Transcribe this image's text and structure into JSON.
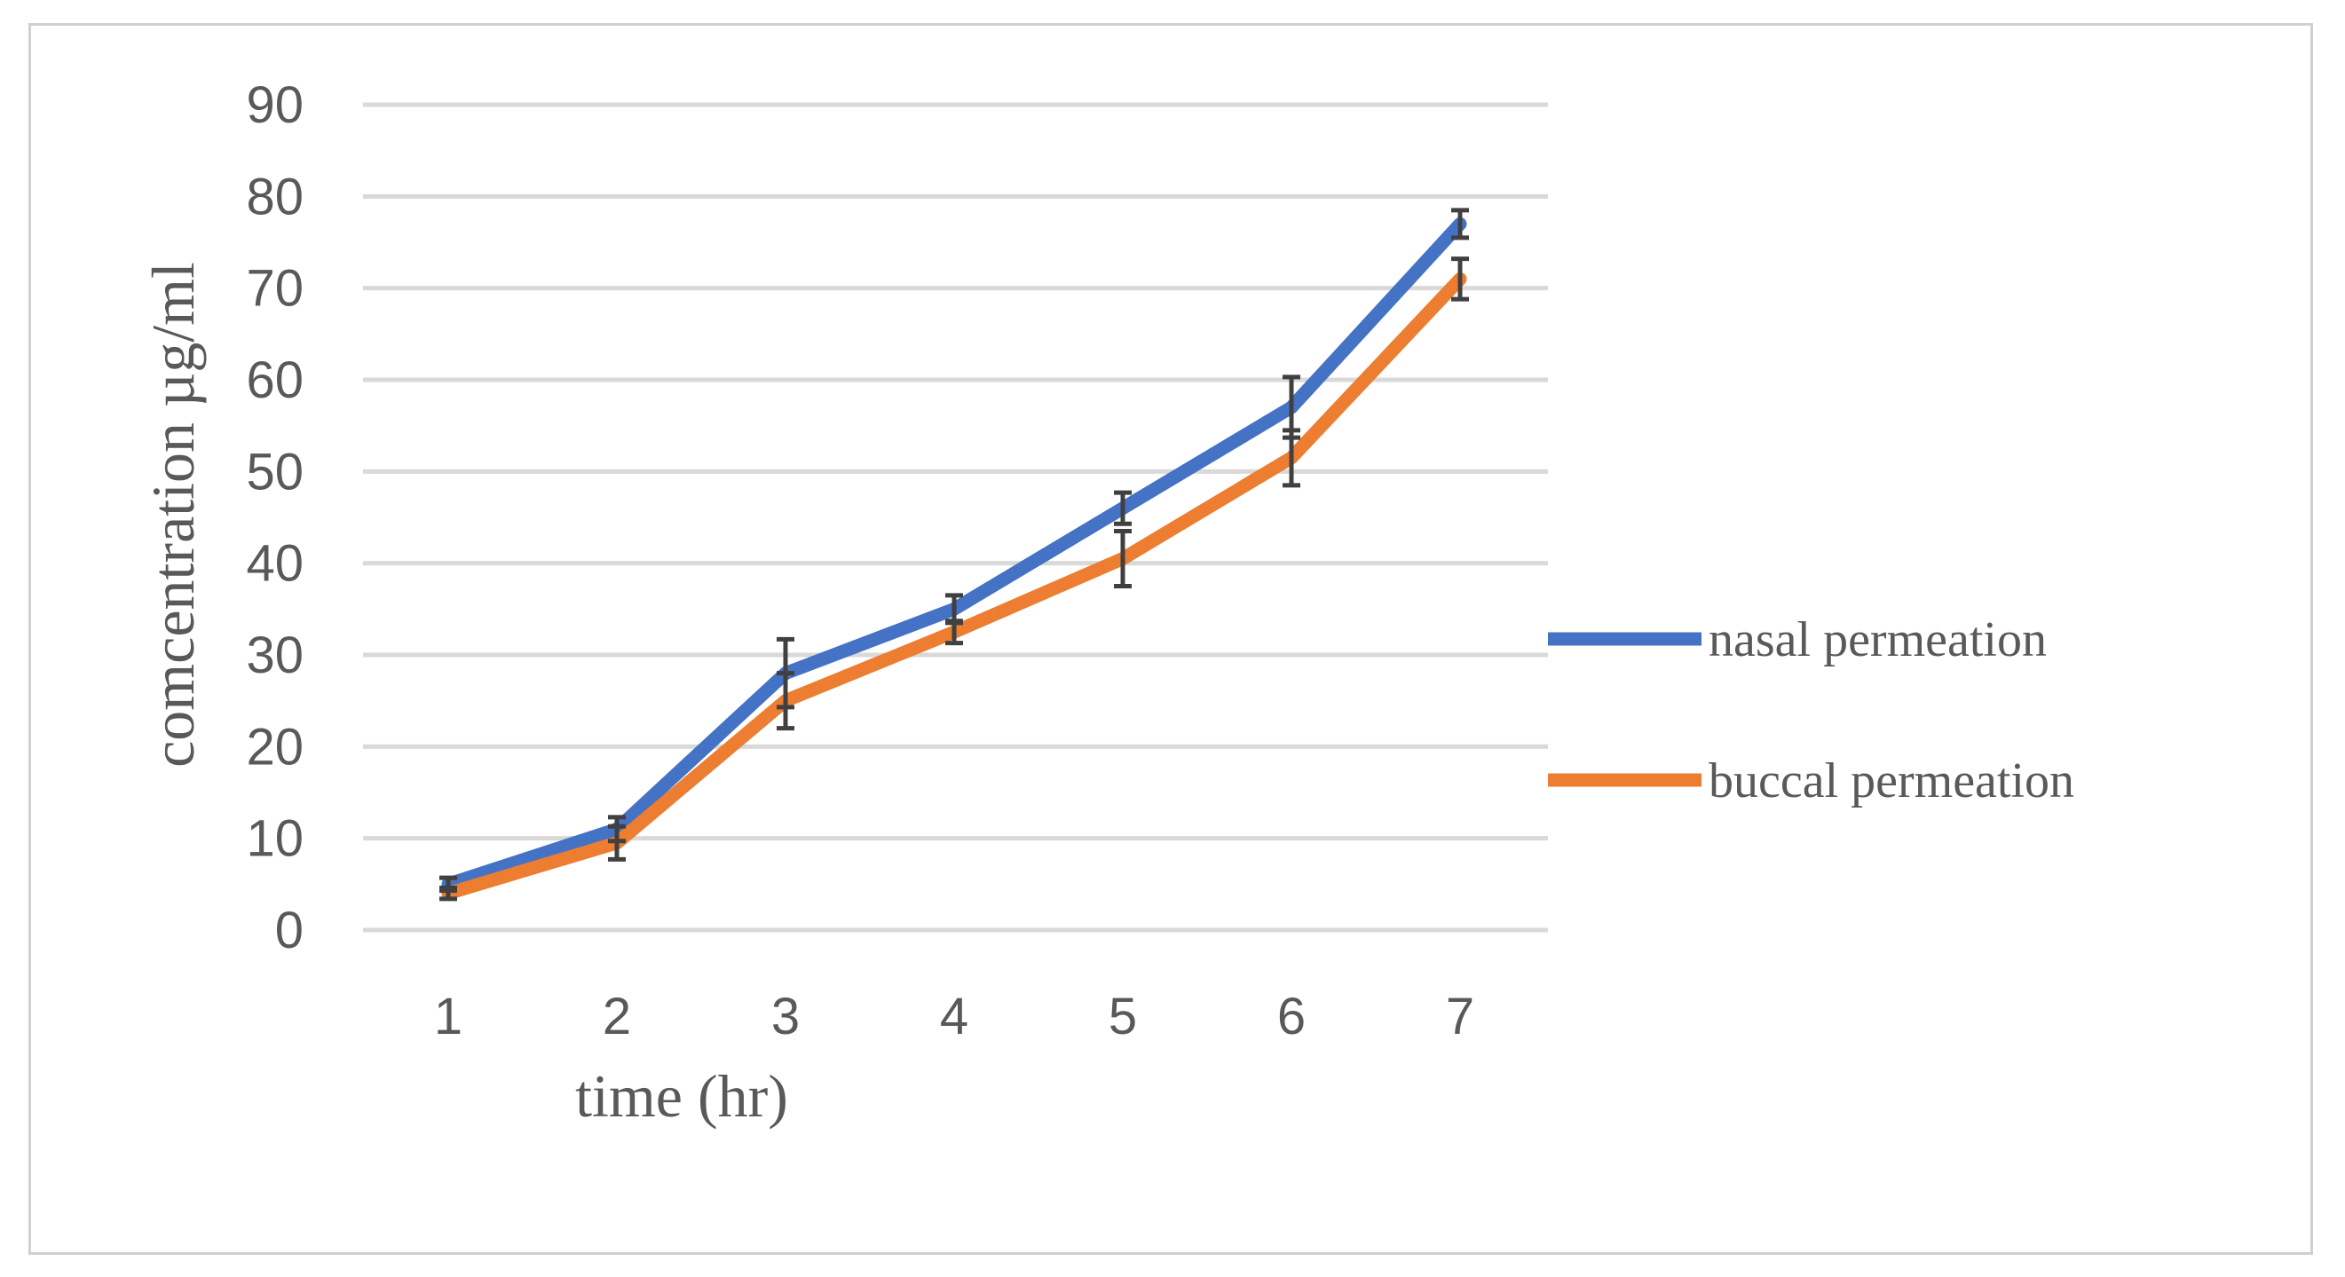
{
  "chart_data": {
    "type": "line",
    "title": "",
    "xlabel": "time (hr)",
    "ylabel": "comcentration  µg/ml",
    "categories": [
      "1",
      "2",
      "3",
      "4",
      "5",
      "6",
      "7"
    ],
    "ylim": [
      0,
      90
    ],
    "yticks": [
      0,
      10,
      20,
      30,
      40,
      50,
      60,
      70,
      80,
      90
    ],
    "grid": true,
    "legend_position": "right",
    "series": [
      {
        "name": "nasal permeation",
        "color": "#4472c4",
        "values": [
          5,
          11,
          28,
          35,
          46,
          57,
          77
        ],
        "error": [
          0.7,
          1.3,
          3.7,
          1.5,
          1.7,
          3.3,
          1.5
        ]
      },
      {
        "name": "buccal permeation",
        "color": "#ed7d31",
        "values": [
          4,
          9.5,
          25,
          32.5,
          40.5,
          51.5,
          71
        ],
        "error": [
          0.6,
          1.8,
          3.0,
          1.2,
          3.0,
          3.0,
          2.2
        ]
      }
    ]
  }
}
